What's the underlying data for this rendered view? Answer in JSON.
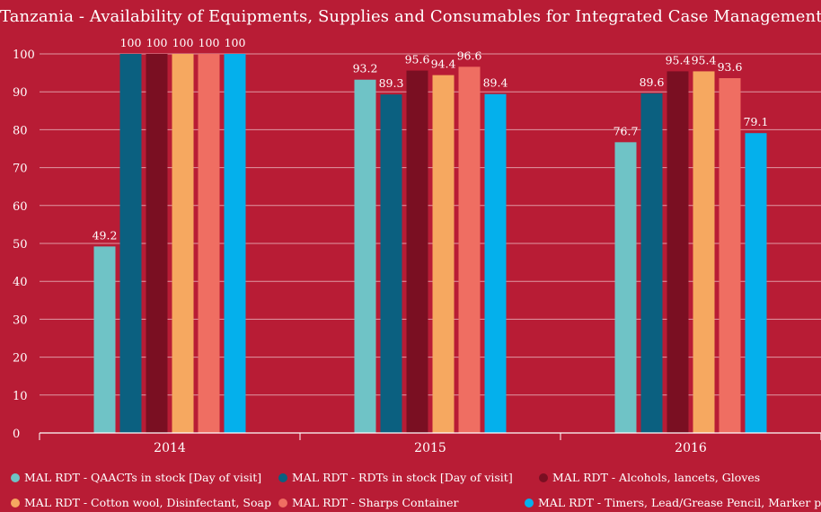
{
  "chart_data": {
    "type": "bar",
    "title": "Tanzania - Availability of Equipments, Supplies and Consumables for Integrated Case Management",
    "xlabel": "",
    "ylabel": "",
    "categories": [
      "2014",
      "2015",
      "2016"
    ],
    "ylim": [
      0,
      100
    ],
    "yticks": [
      0,
      10,
      20,
      30,
      40,
      50,
      60,
      70,
      80,
      90,
      100
    ],
    "grid": true,
    "legend_position": "bottom",
    "series": [
      {
        "name": "MAL RDT - QAACTs in stock [Day of visit]",
        "color": "#6fc3c6",
        "values": [
          49.2,
          93.2,
          76.7
        ]
      },
      {
        "name": "MAL RDT - RDTs in stock [Day of visit]",
        "color": "#0b6080",
        "values": [
          100,
          89.3,
          89.6
        ]
      },
      {
        "name": "MAL RDT - Alcohols, lancets, Gloves",
        "color": "#7a0f22",
        "values": [
          100,
          95.6,
          95.4
        ]
      },
      {
        "name": "MAL RDT - Cotton wool, Disinfectant, Soap",
        "color": "#f6a860",
        "values": [
          100,
          94.4,
          95.4
        ]
      },
      {
        "name": "MAL RDT - Sharps Container",
        "color": "#ef6e62",
        "values": [
          100,
          96.6,
          93.6
        ]
      },
      {
        "name": "MAL RDT - Timers, Lead/Grease Pencil, Marker pens",
        "color": "#04b0ec",
        "values": [
          100,
          89.4,
          79.1
        ]
      }
    ]
  }
}
